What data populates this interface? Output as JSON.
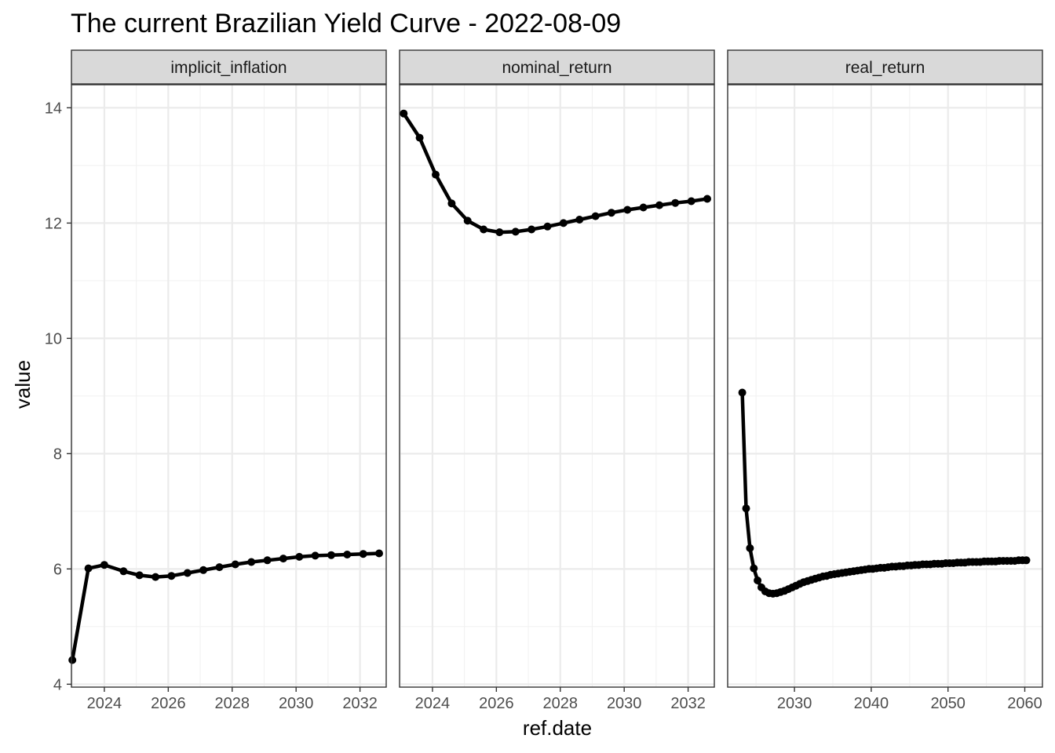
{
  "chart_data": {
    "type": "line",
    "title": "The current Brazilian Yield Curve - 2022-08-09",
    "xlabel": "ref.date",
    "ylabel": "value",
    "ylim": [
      3.95,
      14.4
    ],
    "y_ticks": [
      4,
      6,
      8,
      10,
      12,
      14
    ],
    "y_minor_ticks": [
      5,
      7,
      9,
      11,
      13
    ],
    "grid": true,
    "legend": "none",
    "line_color": "#000000",
    "strip_fill": "#d9d9d9",
    "panels": [
      {
        "name": "implicit_inflation",
        "xlim": [
          2022.97,
          2032.82
        ],
        "x_ticks": [
          2024,
          2026,
          2028,
          2030,
          2032
        ],
        "x_minor_ticks": [
          2023,
          2025,
          2027,
          2029,
          2031
        ],
        "x": [
          2023.0,
          2023.5,
          2024.0,
          2024.6,
          2025.1,
          2025.6,
          2026.1,
          2026.6,
          2027.1,
          2027.6,
          2028.1,
          2028.6,
          2029.1,
          2029.6,
          2030.1,
          2030.6,
          2031.1,
          2031.6,
          2032.1,
          2032.6
        ],
        "y": [
          4.42,
          6.01,
          6.07,
          5.96,
          5.89,
          5.86,
          5.88,
          5.93,
          5.98,
          6.03,
          6.08,
          6.12,
          6.15,
          6.18,
          6.21,
          6.23,
          6.24,
          6.25,
          6.26,
          6.27
        ]
      },
      {
        "name": "nominal_return",
        "xlim": [
          2022.97,
          2032.82
        ],
        "x_ticks": [
          2024,
          2026,
          2028,
          2030,
          2032
        ],
        "x_minor_ticks": [
          2023,
          2025,
          2027,
          2029,
          2031
        ],
        "x": [
          2023.1,
          2023.6,
          2024.1,
          2024.6,
          2025.1,
          2025.6,
          2026.1,
          2026.6,
          2027.1,
          2027.6,
          2028.1,
          2028.6,
          2029.1,
          2029.6,
          2030.1,
          2030.6,
          2031.1,
          2031.6,
          2032.1,
          2032.6
        ],
        "y": [
          13.9,
          13.48,
          12.84,
          12.34,
          12.04,
          11.89,
          11.84,
          11.85,
          11.89,
          11.94,
          12.0,
          12.06,
          12.12,
          12.18,
          12.23,
          12.27,
          12.31,
          12.35,
          12.38,
          12.42
        ]
      },
      {
        "name": "real_return",
        "xlim": [
          2021.3,
          2062.3
        ],
        "x_ticks": [
          2030,
          2040,
          2050,
          2060
        ],
        "x_minor_ticks": [
          2025,
          2035,
          2045,
          2055
        ],
        "x": [
          2023.2,
          2023.7,
          2024.2,
          2024.7,
          2025.2,
          2025.7,
          2026.2,
          2026.7,
          2027.2,
          2027.7,
          2028.2,
          2028.7,
          2029.2,
          2029.7,
          2030.2,
          2030.7,
          2031.2,
          2031.7,
          2032.2,
          2032.7,
          2033.2,
          2033.7,
          2034.2,
          2034.7,
          2035.2,
          2035.7,
          2036.2,
          2036.7,
          2037.2,
          2037.7,
          2038.2,
          2038.7,
          2039.2,
          2039.7,
          2040.2,
          2040.7,
          2041.2,
          2041.7,
          2042.2,
          2042.7,
          2043.2,
          2043.7,
          2044.2,
          2044.7,
          2045.2,
          2045.7,
          2046.2,
          2046.7,
          2047.2,
          2047.7,
          2048.2,
          2048.7,
          2049.2,
          2049.7,
          2050.2,
          2050.7,
          2051.2,
          2051.7,
          2052.2,
          2052.7,
          2053.2,
          2053.7,
          2054.2,
          2054.7,
          2055.2,
          2055.7,
          2056.2,
          2056.7,
          2057.2,
          2057.7,
          2058.2,
          2058.7,
          2059.2,
          2059.7,
          2060.2
        ],
        "y": [
          9.06,
          7.05,
          6.36,
          6.01,
          5.8,
          5.68,
          5.61,
          5.58,
          5.57,
          5.58,
          5.6,
          5.62,
          5.65,
          5.68,
          5.71,
          5.74,
          5.77,
          5.79,
          5.81,
          5.83,
          5.85,
          5.87,
          5.88,
          5.9,
          5.91,
          5.92,
          5.93,
          5.94,
          5.95,
          5.96,
          5.97,
          5.98,
          5.99,
          6.0,
          6.0,
          6.01,
          6.02,
          6.02,
          6.03,
          6.04,
          6.04,
          6.05,
          6.05,
          6.06,
          6.06,
          6.07,
          6.07,
          6.08,
          6.08,
          6.08,
          6.09,
          6.09,
          6.09,
          6.1,
          6.1,
          6.1,
          6.11,
          6.11,
          6.11,
          6.12,
          6.12,
          6.12,
          6.12,
          6.13,
          6.13,
          6.13,
          6.13,
          6.14,
          6.14,
          6.14,
          6.14,
          6.14,
          6.15,
          6.15,
          6.15
        ]
      }
    ]
  }
}
